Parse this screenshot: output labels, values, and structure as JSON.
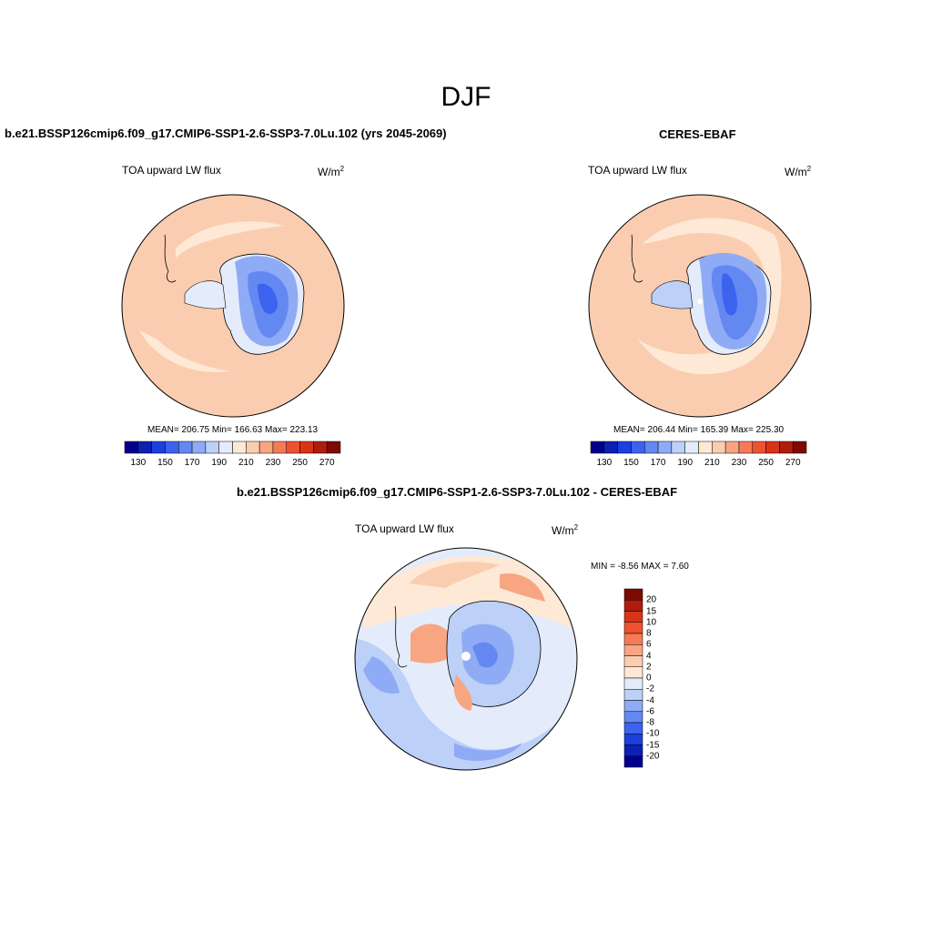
{
  "figure": {
    "season": "DJF"
  },
  "panels": {
    "model": {
      "case_title": "b.e21.BSSP126cmip6.f09_g17.CMIP6-SSP1-2.6-SSP3-7.0Lu.102 (yrs 2045-2069)",
      "variable": "TOA upward LW flux",
      "units_base": "W/m",
      "units_exp": "2",
      "stats": "MEAN= 206.75  Min= 166.63  Max= 223.13"
    },
    "obs": {
      "case_title": "CERES-EBAF",
      "variable": "TOA upward LW flux",
      "units_base": "W/m",
      "units_exp": "2",
      "stats": "MEAN= 206.44  Min= 165.39  Max= 225.30"
    },
    "diff": {
      "case_title": "b.e21.BSSP126cmip6.f09_g17.CMIP6-SSP1-2.6-SSP3-7.0Lu.102 - CERES-EBAF",
      "variable": "TOA upward LW flux",
      "units_base": "W/m",
      "units_exp": "2",
      "stats": "MIN =  -8.56 MAX =   7.60"
    }
  },
  "chart_data": [
    {
      "type": "heatmap",
      "projection": "south-polar-stereographic",
      "title": "TOA upward LW flux",
      "units": "W/m2",
      "stats": {
        "mean": 206.75,
        "min": 166.63,
        "max": 223.13
      },
      "colorbar": {
        "orientation": "horizontal",
        "tick_labels": [
          "130",
          "150",
          "170",
          "190",
          "210",
          "230",
          "250",
          "270"
        ],
        "colors": [
          "#00008b",
          "#0b21b4",
          "#1d3fe0",
          "#3b63f0",
          "#6388f2",
          "#8fabf5",
          "#bcd0f8",
          "#e4ecfb",
          "#fde9d6",
          "#fbcdb0",
          "#f8a582",
          "#f57a55",
          "#ee5230",
          "#d83418",
          "#b01c0c",
          "#7e0a04"
        ]
      }
    },
    {
      "type": "heatmap",
      "projection": "south-polar-stereographic",
      "title": "TOA upward LW flux",
      "units": "W/m2",
      "stats": {
        "mean": 206.44,
        "min": 165.39,
        "max": 225.3
      },
      "colorbar": {
        "orientation": "horizontal",
        "tick_labels": [
          "130",
          "150",
          "170",
          "190",
          "210",
          "230",
          "250",
          "270"
        ],
        "colors": [
          "#00008b",
          "#0b21b4",
          "#1d3fe0",
          "#3b63f0",
          "#6388f2",
          "#8fabf5",
          "#bcd0f8",
          "#e4ecfb",
          "#fde9d6",
          "#fbcdb0",
          "#f8a582",
          "#f57a55",
          "#ee5230",
          "#d83418",
          "#b01c0c",
          "#7e0a04"
        ]
      }
    },
    {
      "type": "heatmap",
      "projection": "south-polar-stereographic",
      "title": "TOA upward LW flux",
      "units": "W/m2",
      "stats": {
        "min": -8.56,
        "max": 7.6
      },
      "colorbar": {
        "orientation": "vertical",
        "tick_labels": [
          "20",
          "15",
          "10",
          "8",
          "6",
          "4",
          "2",
          "0",
          "-2",
          "-4",
          "-6",
          "-8",
          "-10",
          "-15",
          "-20"
        ],
        "colors": [
          "#7e0a04",
          "#b01c0c",
          "#d83418",
          "#ee5230",
          "#f57a55",
          "#f8a582",
          "#fbcdb0",
          "#fde9d6",
          "#e4ecfb",
          "#bcd0f8",
          "#8fabf5",
          "#6388f2",
          "#3b63f0",
          "#1d3fe0",
          "#0b21b4",
          "#00008b"
        ]
      }
    }
  ]
}
